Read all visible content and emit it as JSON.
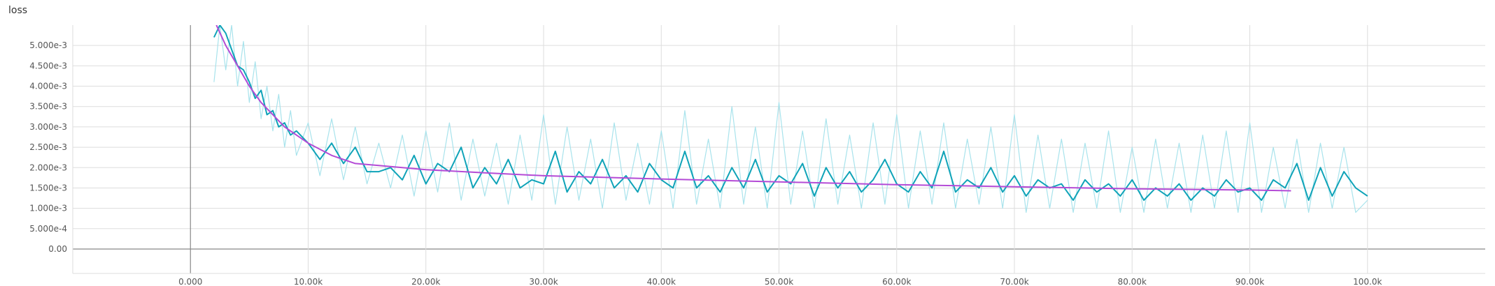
{
  "chart_data": {
    "type": "line",
    "title": "loss",
    "xlabel": "",
    "ylabel": "",
    "x_ticks": [
      {
        "value": 0,
        "label": "0.000"
      },
      {
        "value": 10000,
        "label": "10.00k"
      },
      {
        "value": 20000,
        "label": "20.00k"
      },
      {
        "value": 30000,
        "label": "30.00k"
      },
      {
        "value": 40000,
        "label": "40.00k"
      },
      {
        "value": 50000,
        "label": "50.00k"
      },
      {
        "value": 60000,
        "label": "60.00k"
      },
      {
        "value": 70000,
        "label": "70.00k"
      },
      {
        "value": 80000,
        "label": "80.00k"
      },
      {
        "value": 90000,
        "label": "90.00k"
      },
      {
        "value": 100000,
        "label": "100.0k"
      }
    ],
    "y_ticks": [
      {
        "value": 0,
        "label": "0.00"
      },
      {
        "value": 0.0005,
        "label": "5.000e-4"
      },
      {
        "value": 0.001,
        "label": "1.000e-3"
      },
      {
        "value": 0.0015,
        "label": "1.500e-3"
      },
      {
        "value": 0.002,
        "label": "2.000e-3"
      },
      {
        "value": 0.0025,
        "label": "2.500e-3"
      },
      {
        "value": 0.003,
        "label": "3.000e-3"
      },
      {
        "value": 0.0035,
        "label": "3.500e-3"
      },
      {
        "value": 0.004,
        "label": "4.000e-3"
      },
      {
        "value": 0.0045,
        "label": "4.500e-3"
      },
      {
        "value": 0.005,
        "label": "5.000e-3"
      }
    ],
    "xlim": [
      -10000,
      110000
    ],
    "ylim": [
      -0.0006,
      0.0055
    ],
    "grid": true,
    "legend": "none",
    "colors": {
      "smoothed": "#0fa3b8",
      "raw": "#a8e3ec",
      "trend": "#b44bd6",
      "grid": "#dddddd",
      "axis": "#888888"
    },
    "series": [
      {
        "role": "smoothed",
        "x": [
          2000,
          2500,
          3000,
          3500,
          4000,
          4500,
          5000,
          5500,
          6000,
          6500,
          7000,
          7500,
          8000,
          8500,
          9000,
          10000,
          11000,
          12000,
          13000,
          14000,
          15000,
          16000,
          17000,
          18000,
          19000,
          20000,
          21000,
          22000,
          23000,
          24000,
          25000,
          26000,
          27000,
          28000,
          29000,
          30000,
          31000,
          32000,
          33000,
          34000,
          35000,
          36000,
          37000,
          38000,
          39000,
          40000,
          41000,
          42000,
          43000,
          44000,
          45000,
          46000,
          47000,
          48000,
          49000,
          50000,
          51000,
          52000,
          53000,
          54000,
          55000,
          56000,
          57000,
          58000,
          59000,
          60000,
          61000,
          62000,
          63000,
          64000,
          65000,
          66000,
          67000,
          68000,
          69000,
          70000,
          71000,
          72000,
          73000,
          74000,
          75000,
          76000,
          77000,
          78000,
          79000,
          80000,
          81000,
          82000,
          83000,
          84000,
          85000,
          86000,
          87000,
          88000,
          89000,
          90000,
          91000,
          92000,
          93000,
          94000,
          95000,
          96000,
          97000,
          98000,
          99000,
          100000
        ],
        "y": [
          0.0052,
          0.0055,
          0.0053,
          0.0049,
          0.0045,
          0.0044,
          0.0041,
          0.0037,
          0.0039,
          0.0033,
          0.0034,
          0.003,
          0.0031,
          0.0028,
          0.0029,
          0.0026,
          0.0022,
          0.0026,
          0.0021,
          0.0025,
          0.0019,
          0.0019,
          0.002,
          0.0017,
          0.0023,
          0.0016,
          0.0021,
          0.0019,
          0.0025,
          0.0015,
          0.002,
          0.0016,
          0.0022,
          0.0015,
          0.0017,
          0.0016,
          0.0024,
          0.0014,
          0.0019,
          0.0016,
          0.0022,
          0.0015,
          0.0018,
          0.0014,
          0.0021,
          0.0017,
          0.0015,
          0.0024,
          0.0015,
          0.0018,
          0.0014,
          0.002,
          0.0015,
          0.0022,
          0.0014,
          0.0018,
          0.0016,
          0.0021,
          0.0013,
          0.002,
          0.0015,
          0.0019,
          0.0014,
          0.0017,
          0.0022,
          0.0016,
          0.0014,
          0.0019,
          0.0015,
          0.0024,
          0.0014,
          0.0017,
          0.0015,
          0.002,
          0.0014,
          0.0018,
          0.0013,
          0.0017,
          0.0015,
          0.0016,
          0.0012,
          0.0017,
          0.0014,
          0.0016,
          0.0013,
          0.0017,
          0.0012,
          0.0015,
          0.0013,
          0.0016,
          0.0012,
          0.0015,
          0.0013,
          0.0017,
          0.0014,
          0.0015,
          0.0012,
          0.0017,
          0.0015,
          0.0021,
          0.0012,
          0.002,
          0.0013,
          0.0019,
          0.0015,
          0.0013
        ]
      },
      {
        "role": "raw",
        "x": [
          2000,
          2500,
          3000,
          3500,
          4000,
          4500,
          5000,
          5500,
          6000,
          6500,
          7000,
          7500,
          8000,
          8500,
          9000,
          10000,
          11000,
          12000,
          13000,
          14000,
          15000,
          16000,
          17000,
          18000,
          19000,
          20000,
          21000,
          22000,
          23000,
          24000,
          25000,
          26000,
          27000,
          28000,
          29000,
          30000,
          31000,
          32000,
          33000,
          34000,
          35000,
          36000,
          37000,
          38000,
          39000,
          40000,
          41000,
          42000,
          43000,
          44000,
          45000,
          46000,
          47000,
          48000,
          49000,
          50000,
          51000,
          52000,
          53000,
          54000,
          55000,
          56000,
          57000,
          58000,
          59000,
          60000,
          61000,
          62000,
          63000,
          64000,
          65000,
          66000,
          67000,
          68000,
          69000,
          70000,
          71000,
          72000,
          73000,
          74000,
          75000,
          76000,
          77000,
          78000,
          79000,
          80000,
          81000,
          82000,
          83000,
          84000,
          85000,
          86000,
          87000,
          88000,
          89000,
          90000,
          91000,
          92000,
          93000,
          94000,
          95000,
          96000,
          97000,
          98000,
          99000,
          100000
        ],
        "y": [
          0.0041,
          0.0055,
          0.0044,
          0.0055,
          0.004,
          0.0051,
          0.0036,
          0.0046,
          0.0032,
          0.004,
          0.0029,
          0.0038,
          0.0025,
          0.0034,
          0.0023,
          0.0031,
          0.0018,
          0.0032,
          0.0017,
          0.003,
          0.0016,
          0.0026,
          0.0015,
          0.0028,
          0.0013,
          0.0029,
          0.0014,
          0.0031,
          0.0012,
          0.0027,
          0.0013,
          0.0026,
          0.0011,
          0.0028,
          0.0012,
          0.0033,
          0.0011,
          0.003,
          0.0012,
          0.0027,
          0.001,
          0.0031,
          0.0012,
          0.0026,
          0.0011,
          0.0029,
          0.001,
          0.0034,
          0.0011,
          0.0027,
          0.001,
          0.0035,
          0.0011,
          0.003,
          0.001,
          0.0036,
          0.0011,
          0.0029,
          0.001,
          0.0032,
          0.0011,
          0.0028,
          0.001,
          0.0031,
          0.0011,
          0.0033,
          0.001,
          0.0029,
          0.0011,
          0.0031,
          0.001,
          0.0027,
          0.0011,
          0.003,
          0.001,
          0.0033,
          0.0009,
          0.0028,
          0.001,
          0.0027,
          0.0009,
          0.0026,
          0.001,
          0.0029,
          0.0009,
          0.0025,
          0.0009,
          0.0027,
          0.001,
          0.0026,
          0.0009,
          0.0028,
          0.001,
          0.0029,
          0.0009,
          0.0031,
          0.0009,
          0.0025,
          0.001,
          0.0027,
          0.0009,
          0.0026,
          0.001,
          0.0025,
          0.0009,
          0.0012
        ]
      },
      {
        "role": "trend",
        "x": [
          2200,
          3000,
          4000,
          5000,
          6000,
          7000,
          8000,
          9000,
          10000,
          12000,
          14000,
          16000,
          18000,
          20000,
          25000,
          30000,
          40000,
          50000,
          60000,
          70000,
          80000,
          90000,
          93500
        ],
        "y": [
          0.0055,
          0.005,
          0.0045,
          0.004,
          0.0036,
          0.0033,
          0.003,
          0.0028,
          0.0026,
          0.0023,
          0.0021,
          0.00205,
          0.002,
          0.00195,
          0.00187,
          0.0018,
          0.00172,
          0.00165,
          0.00158,
          0.00153,
          0.00148,
          0.00145,
          0.00143
        ]
      }
    ]
  }
}
